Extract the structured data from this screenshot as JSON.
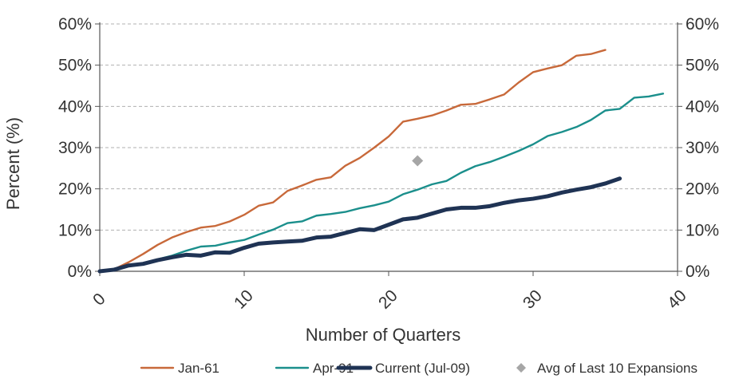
{
  "chart_data": {
    "type": "line",
    "title": "",
    "xlabel": "Number of Quarters",
    "ylabel": "Percent (%)",
    "xlim": [
      0,
      40
    ],
    "ylim": [
      0,
      60
    ],
    "x_ticks": [
      0,
      10,
      20,
      30,
      40
    ],
    "x_tick_labels": [
      "0",
      "10",
      "20",
      "30",
      "40"
    ],
    "y_ticks": [
      0,
      10,
      20,
      30,
      40,
      50,
      60
    ],
    "y_tick_labels": [
      "0%",
      "10%",
      "20%",
      "30%",
      "40%",
      "50%",
      "60%"
    ],
    "secondary_y_axis": true,
    "grid": "horizontal-dashed",
    "legend_position": "bottom",
    "series": [
      {
        "name": "Jan-61",
        "color": "#C8693A",
        "line_width": "thin",
        "x": [
          0,
          1,
          2,
          3,
          4,
          5,
          6,
          7,
          8,
          9,
          10,
          11,
          12,
          13,
          14,
          15,
          16,
          17,
          18,
          19,
          20,
          21,
          22,
          23,
          24,
          25,
          26,
          27,
          28,
          29,
          30,
          31,
          32,
          33,
          34,
          35
        ],
        "values": [
          0,
          0.5,
          2.2,
          4.2,
          6.4,
          8.2,
          9.5,
          10.6,
          11.0,
          12.1,
          13.7,
          15.9,
          16.7,
          19.5,
          20.8,
          22.2,
          22.8,
          25.6,
          27.5,
          30.0,
          32.7,
          36.3,
          37.0,
          37.8,
          39.0,
          40.4,
          40.6,
          41.7,
          42.9,
          45.8,
          48.3,
          49.2,
          50.0,
          52.3,
          52.7,
          53.7
        ]
      },
      {
        "name": "Apr-91",
        "color": "#1B8F8C",
        "line_width": "thin",
        "x": [
          0,
          1,
          2,
          3,
          4,
          5,
          6,
          7,
          8,
          9,
          10,
          11,
          12,
          13,
          14,
          15,
          16,
          17,
          18,
          19,
          20,
          21,
          22,
          23,
          24,
          25,
          26,
          27,
          28,
          29,
          30,
          31,
          32,
          33,
          34,
          35,
          36,
          37,
          38,
          39
        ],
        "values": [
          0,
          0.5,
          1.5,
          2.0,
          2.9,
          3.8,
          5.0,
          6.0,
          6.2,
          7.0,
          7.6,
          8.9,
          10.1,
          11.7,
          12.1,
          13.5,
          13.9,
          14.4,
          15.3,
          16.0,
          16.9,
          18.7,
          19.8,
          21.1,
          21.9,
          23.9,
          25.5,
          26.5,
          27.8,
          29.2,
          30.8,
          32.8,
          33.8,
          35.0,
          36.7,
          39.0,
          39.4,
          42.1,
          42.4,
          43.1
        ]
      },
      {
        "name": "Current (Jul-09)",
        "color": "#1F3354",
        "line_width": "thick",
        "x": [
          0,
          1,
          2,
          3,
          4,
          5,
          6,
          7,
          8,
          9,
          10,
          11,
          12,
          13,
          14,
          15,
          16,
          17,
          18,
          19,
          20,
          21,
          22,
          23,
          24,
          25,
          26,
          27,
          28,
          29,
          30,
          31,
          32,
          33,
          34,
          35,
          36
        ],
        "values": [
          0,
          0.4,
          1.4,
          1.8,
          2.7,
          3.4,
          4.0,
          3.8,
          4.6,
          4.5,
          5.7,
          6.7,
          7.0,
          7.2,
          7.4,
          8.2,
          8.4,
          9.3,
          10.2,
          10.0,
          11.3,
          12.6,
          13.0,
          14.0,
          15.0,
          15.4,
          15.4,
          15.8,
          16.6,
          17.2,
          17.6,
          18.2,
          19.1,
          19.8,
          20.4,
          21.3,
          22.5
        ]
      },
      {
        "name": "Avg of Last 10 Expansions",
        "color": "#A6A6A6",
        "marker": "diamond",
        "x": [
          22
        ],
        "values": [
          26.8
        ]
      }
    ]
  }
}
